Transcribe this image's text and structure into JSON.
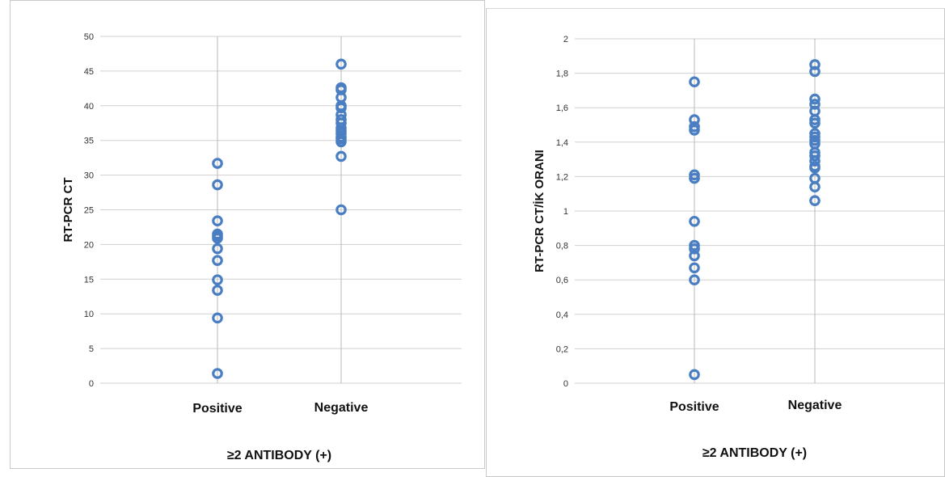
{
  "colors": {
    "marker": "#4a7ec2",
    "grid": "#d0d0d0"
  },
  "chart_data": [
    {
      "type": "scatter",
      "categories": [
        "Positive",
        "Negative"
      ],
      "xlabel": "≥2 ANTIBODY (+)",
      "ylabel": "RT-PCR CT",
      "ylim": [
        0,
        50
      ],
      "yticks": [
        0,
        5,
        10,
        15,
        20,
        25,
        30,
        35,
        40,
        45,
        50
      ],
      "ytick_labels": [
        "0",
        "5",
        "10",
        "15",
        "20",
        "25",
        "30",
        "35",
        "40",
        "45",
        "50"
      ],
      "grid": true,
      "series": [
        {
          "category": "Positive",
          "values": [
            31.7,
            28.6,
            23.4,
            21.5,
            21.2,
            20.9,
            19.4,
            17.7,
            14.9,
            13.4,
            9.4,
            1.4
          ]
        },
        {
          "category": "Negative",
          "values": [
            46.0,
            42.6,
            42.3,
            41.2,
            40.0,
            39.7,
            38.7,
            38.0,
            37.5,
            36.8,
            36.4,
            36.0,
            35.5,
            35.2,
            34.8,
            32.7,
            25.0
          ]
        }
      ]
    },
    {
      "type": "scatter",
      "categories": [
        "Positive",
        "Negative"
      ],
      "xlabel": "≥2 ANTIBODY (+)",
      "ylabel": "RT-PCR CT/İK ORANI",
      "ylim": [
        0,
        2
      ],
      "yticks": [
        0,
        0.2,
        0.4,
        0.6,
        0.8,
        1,
        1.2,
        1.4,
        1.6,
        1.8,
        2
      ],
      "ytick_labels": [
        "0",
        "0,2",
        "0,4",
        "0,6",
        "0,8",
        "1",
        "1,2",
        "1,4",
        "1,6",
        "1,8",
        "2"
      ],
      "grid": true,
      "series": [
        {
          "category": "Positive",
          "values": [
            1.75,
            1.53,
            1.49,
            1.47,
            1.21,
            1.19,
            0.94,
            0.8,
            0.78,
            0.74,
            0.67,
            0.6,
            0.05
          ]
        },
        {
          "category": "Negative",
          "values": [
            1.85,
            1.81,
            1.65,
            1.62,
            1.58,
            1.53,
            1.51,
            1.45,
            1.43,
            1.41,
            1.39,
            1.34,
            1.32,
            1.29,
            1.26,
            1.25,
            1.19,
            1.14,
            1.06
          ]
        }
      ]
    }
  ]
}
